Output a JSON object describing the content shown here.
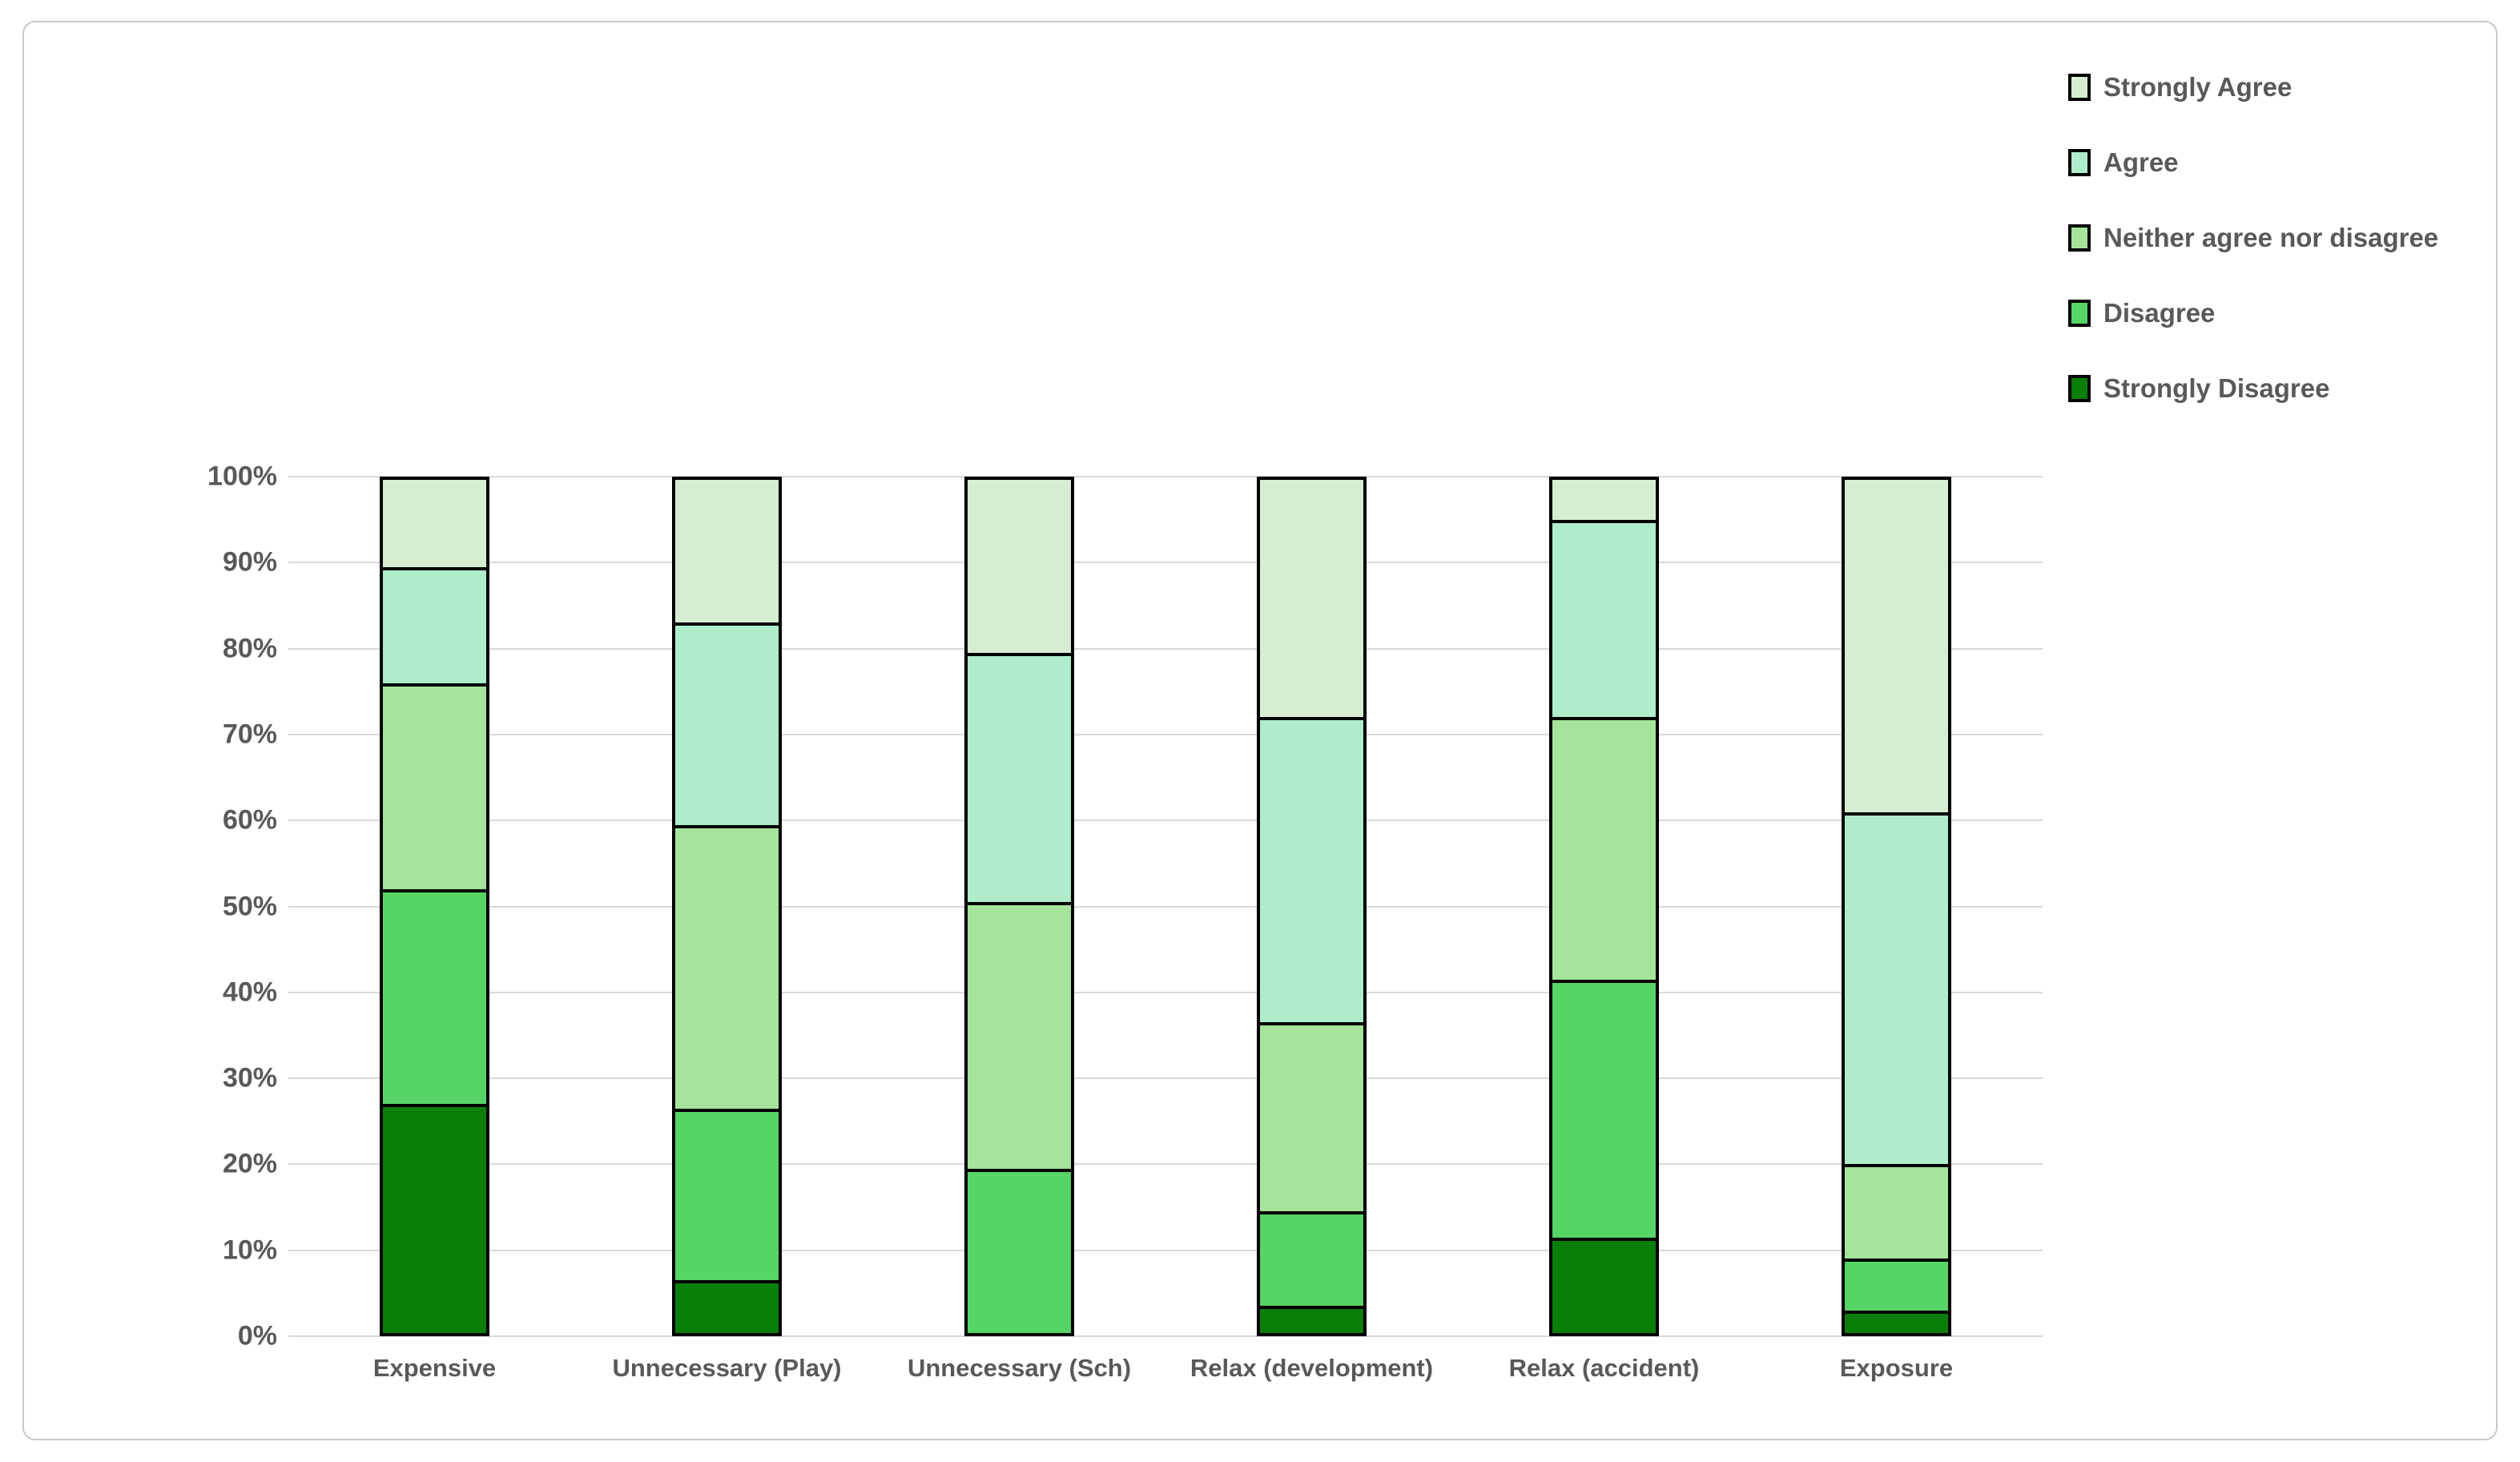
{
  "chart_data": {
    "type": "bar",
    "subtype": "stacked-100-percent-column",
    "title": "",
    "xlabel": "",
    "ylabel": "",
    "grid": true,
    "categories": [
      "Expensive",
      "Unnecessary (Play)",
      "Unnecessary (Sch)",
      "Relax (development)",
      "Relax (accident)",
      "Exposure"
    ],
    "series": [
      {
        "name": "Strongly Disagree",
        "color": "#097f09",
        "values": [
          27,
          6.5,
          0,
          3.5,
          11.5,
          3
        ]
      },
      {
        "name": "Disagree",
        "color": "#56d466",
        "values": [
          25,
          20,
          19.5,
          11,
          30,
          6
        ]
      },
      {
        "name": "Neither agree nor disagree",
        "color": "#a6e49c",
        "values": [
          24,
          33,
          31,
          22,
          30.5,
          11
        ]
      },
      {
        "name": "Agree",
        "color": "#aeeccb",
        "values": [
          13.5,
          23.5,
          29,
          35.5,
          23,
          41
        ]
      },
      {
        "name": "Strongly Agree",
        "color": "#d6edd2",
        "values": [
          10.5,
          17,
          20.5,
          28,
          5,
          39
        ]
      }
    ],
    "y_axis": {
      "min": 0,
      "max": 100,
      "unit": "%",
      "ticks": [
        "100%",
        "90%",
        "80%",
        "70%",
        "60%",
        "50%",
        "40%",
        "30%",
        "20%",
        "10%",
        "0%"
      ]
    },
    "legend": {
      "position": "top-right",
      "order": [
        "Strongly Agree",
        "Agree",
        "Neither agree nor disagree",
        "Disagree",
        "Strongly Disagree"
      ]
    },
    "style": {
      "bar_border_color": "#000000",
      "gridline_color": "#d9d9d9",
      "text_color": "#595959",
      "frame_border_color": "#c9c9c9",
      "background_color": "#ffffff"
    }
  }
}
